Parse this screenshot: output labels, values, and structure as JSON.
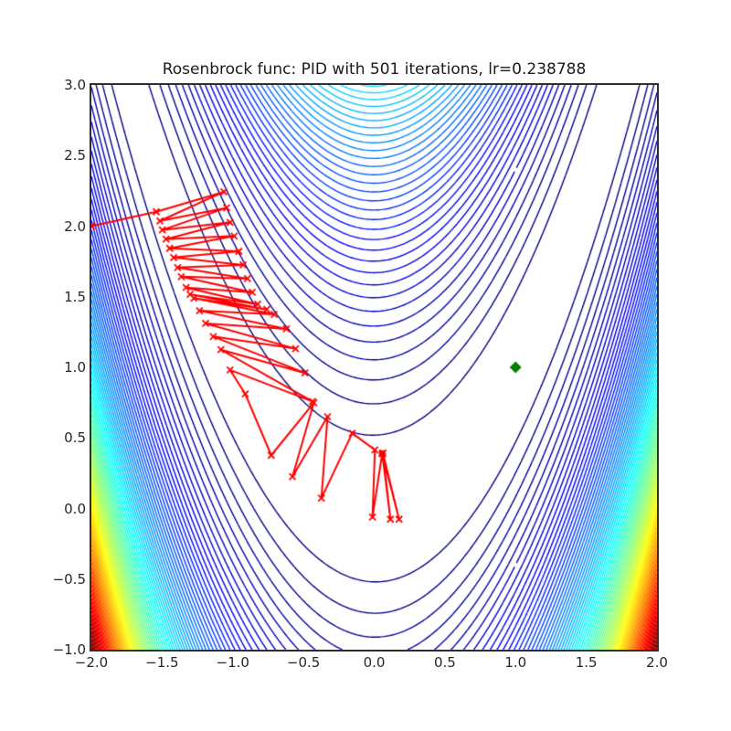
{
  "title": "Rosenbrock func: PID with 501 iterations, lr=0.238788",
  "axes": {
    "xlim": [
      -2.0,
      2.0
    ],
    "ylim": [
      -1.0,
      3.0
    ],
    "xtick_labels": [
      "−2.0",
      "−1.5",
      "−1.0",
      "−0.5",
      "0.0",
      "0.5",
      "1.0",
      "1.5",
      "2.0"
    ],
    "ytick_labels": [
      "3.0",
      "2.5",
      "2.0",
      "1.5",
      "1.0",
      "0.5",
      "0.0",
      "−0.5",
      "−1.0"
    ],
    "spine_color": "#2e2e2e",
    "background": "#ffffff"
  },
  "chart_data": {
    "type": "line",
    "subtype": "contour-plot-with-optimization-trajectory",
    "title": "Rosenbrock func: PID with 501 iterations, lr=0.238788",
    "xlabel": "",
    "ylabel": "",
    "xlim": [
      -2.0,
      2.0
    ],
    "ylim": [
      -1.0,
      3.0
    ],
    "grid": false,
    "legend": "none",
    "contour": {
      "function": "rosenbrock",
      "formula": "(1-x)^2 + 100*(y-x^2)^2",
      "levels_start": 28,
      "levels_step": 28,
      "levels_count": 89,
      "colormap": "jet",
      "line_width": 1.4
    },
    "trajectory": {
      "name": "PID optimizer path",
      "color": "#ff0000",
      "line_width": 2.0,
      "marker": "x",
      "marker_size": 7,
      "points": [
        [
          -2.0,
          2.0
        ],
        [
          -1.541,
          2.102
        ],
        [
          -1.063,
          2.243
        ],
        [
          -1.515,
          2.037
        ],
        [
          -1.043,
          2.13
        ],
        [
          -1.498,
          1.973
        ],
        [
          -1.019,
          2.027
        ],
        [
          -1.472,
          1.908
        ],
        [
          -0.99,
          1.93
        ],
        [
          -1.446,
          1.843
        ],
        [
          -0.957,
          1.822
        ],
        [
          -1.418,
          1.778
        ],
        [
          -0.927,
          1.725
        ],
        [
          -1.39,
          1.707
        ],
        [
          -0.896,
          1.628
        ],
        [
          -1.364,
          1.642
        ],
        [
          -0.862,
          1.531
        ],
        [
          -1.33,
          1.565
        ],
        [
          -0.824,
          1.447
        ],
        [
          -1.302,
          1.517
        ],
        [
          -0.76,
          1.41
        ],
        [
          -1.275,
          1.49
        ],
        [
          -0.707,
          1.375
        ],
        [
          -1.235,
          1.401
        ],
        [
          -0.621,
          1.272
        ],
        [
          -1.192,
          1.311
        ],
        [
          -0.556,
          1.132
        ],
        [
          -1.138,
          1.218
        ],
        [
          -0.49,
          0.96
        ],
        [
          -1.084,
          1.125
        ],
        [
          -0.436,
          0.758
        ],
        [
          -1.019,
          0.981
        ],
        [
          -0.912,
          0.812
        ],
        [
          -0.728,
          0.377
        ],
        [
          -0.427,
          0.749
        ],
        [
          -0.578,
          0.225
        ],
        [
          -0.33,
          0.65
        ],
        [
          -0.373,
          0.074
        ],
        [
          -0.155,
          0.533
        ],
        [
          0.005,
          0.415
        ],
        [
          -0.012,
          -0.061
        ],
        [
          0.057,
          0.39
        ],
        [
          0.115,
          -0.076
        ],
        [
          0.062,
          0.392
        ],
        [
          0.176,
          -0.076
        ],
        [
          0.057,
          0.388
        ]
      ],
      "start_point": [
        -2.0,
        2.0
      ],
      "end_point": [
        0.057,
        0.388
      ],
      "end_marker": "o",
      "end_marker_color": "#ff0000"
    },
    "optimum_marker": {
      "name": "global minimum",
      "x": 1.0,
      "y": 1.0,
      "marker": "D",
      "color": "#008000",
      "size": 13
    }
  }
}
